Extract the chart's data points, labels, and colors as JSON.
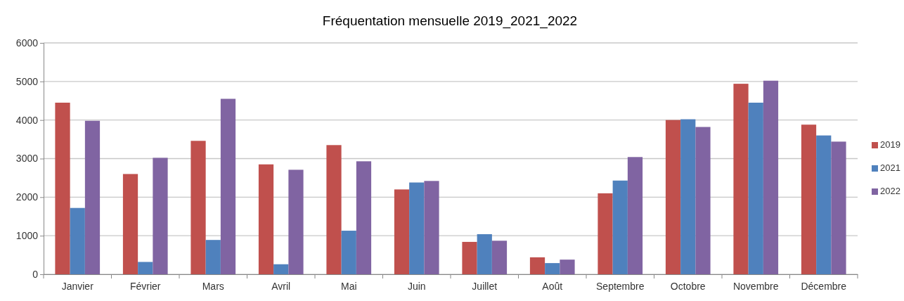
{
  "chart_data": {
    "type": "bar",
    "title": "Fréquentation mensuelle 2019_2021_2022",
    "categories": [
      "Janvier",
      "Février",
      "Mars",
      "Avril",
      "Mai",
      "Juin",
      "Juillet",
      "Août",
      "Septembre",
      "Octobre",
      "Novembre",
      "Décembre"
    ],
    "series": [
      {
        "name": "2019",
        "color": "#c0504d",
        "values": [
          4450,
          2600,
          3460,
          2850,
          3350,
          2200,
          840,
          440,
          2100,
          4000,
          4940,
          3880
        ]
      },
      {
        "name": "2021",
        "color": "#4f81bd",
        "values": [
          1720,
          320,
          890,
          260,
          1130,
          2380,
          1040,
          290,
          2430,
          4020,
          4450,
          3600
        ]
      },
      {
        "name": "2022",
        "color": "#8064a2",
        "values": [
          3980,
          3020,
          4550,
          2710,
          2930,
          2420,
          870,
          380,
          3040,
          3820,
          5020,
          3440
        ]
      }
    ],
    "ylim": [
      0,
      6000
    ],
    "yticks": [
      0,
      1000,
      2000,
      3000,
      4000,
      5000,
      6000
    ],
    "grid": "y",
    "legend": "right"
  }
}
